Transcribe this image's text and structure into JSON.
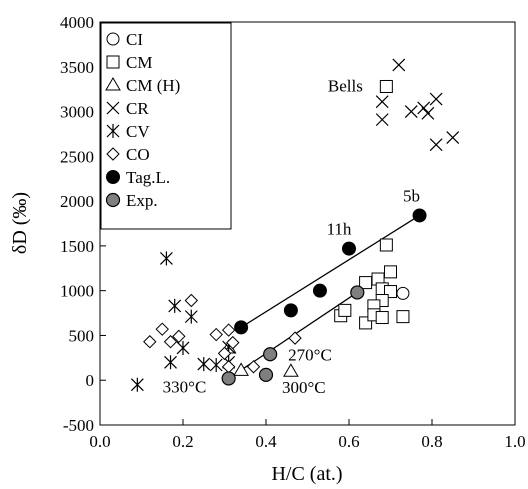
{
  "chart_data": {
    "type": "scatter",
    "xlabel": "H/C (at.)",
    "ylabel": "δD (‰)",
    "xlim": [
      0,
      1
    ],
    "ylim": [
      -500,
      4000
    ],
    "xticks": [
      0,
      0.2,
      0.4,
      0.6,
      0.8,
      1
    ],
    "xtick_labels": [
      "0.0",
      "0.2",
      "0.4",
      "0.6",
      "0.8",
      "1.0"
    ],
    "yticks": [
      -500,
      0,
      500,
      1000,
      1500,
      2000,
      2500,
      3000,
      3500,
      4000
    ],
    "ytick_labels": [
      "-500",
      "0",
      "500",
      "1000",
      "1500",
      "2000",
      "2500",
      "3000",
      "3500",
      "4000"
    ],
    "grid": false,
    "legend_position": "top-left",
    "series": [
      {
        "name": "CI",
        "marker": "circle-open",
        "points": [
          [
            0.73,
            970
          ]
        ]
      },
      {
        "name": "CM",
        "marker": "square-open",
        "points": [
          [
            0.69,
            3280
          ],
          [
            0.69,
            1510
          ],
          [
            0.7,
            1210
          ],
          [
            0.67,
            1130
          ],
          [
            0.64,
            1090
          ],
          [
            0.68,
            1020
          ],
          [
            0.7,
            990
          ],
          [
            0.68,
            890
          ],
          [
            0.66,
            830
          ],
          [
            0.58,
            720
          ],
          [
            0.59,
            780
          ],
          [
            0.64,
            640
          ],
          [
            0.66,
            730
          ],
          [
            0.68,
            700
          ],
          [
            0.73,
            710
          ]
        ]
      },
      {
        "name": "CM (H)",
        "marker": "triangle-open",
        "points": [
          [
            0.31,
            360
          ],
          [
            0.34,
            110
          ],
          [
            0.46,
            100
          ]
        ]
      },
      {
        "name": "CR",
        "marker": "x",
        "points": [
          [
            0.72,
            3520
          ],
          [
            0.68,
            3110
          ],
          [
            0.68,
            2910
          ],
          [
            0.75,
            3000
          ],
          [
            0.78,
            3040
          ],
          [
            0.79,
            2980
          ],
          [
            0.81,
            3140
          ],
          [
            0.81,
            2630
          ],
          [
            0.85,
            2710
          ]
        ]
      },
      {
        "name": "CV",
        "marker": "asterisk",
        "points": [
          [
            0.16,
            1360
          ],
          [
            0.18,
            830
          ],
          [
            0.22,
            710
          ],
          [
            0.2,
            360
          ],
          [
            0.17,
            200
          ],
          [
            0.09,
            -50
          ],
          [
            0.25,
            180
          ],
          [
            0.28,
            170
          ],
          [
            0.31,
            200
          ],
          [
            0.31,
            370
          ]
        ]
      },
      {
        "name": "CO",
        "marker": "diamond-open",
        "points": [
          [
            0.22,
            890
          ],
          [
            0.15,
            570
          ],
          [
            0.19,
            490
          ],
          [
            0.17,
            430
          ],
          [
            0.12,
            430
          ],
          [
            0.28,
            510
          ],
          [
            0.31,
            560
          ],
          [
            0.32,
            420
          ],
          [
            0.3,
            300
          ],
          [
            0.31,
            150
          ],
          [
            0.47,
            470
          ],
          [
            0.37,
            150
          ]
        ]
      },
      {
        "name": "Tag.L.",
        "marker": "circle-black",
        "points": [
          [
            0.34,
            590
          ],
          [
            0.46,
            780
          ],
          [
            0.53,
            1000
          ],
          [
            0.6,
            1470
          ],
          [
            0.77,
            1840
          ]
        ]
      },
      {
        "name": "Exp.",
        "marker": "circle-gray",
        "points": [
          [
            0.31,
            20
          ],
          [
            0.4,
            60
          ],
          [
            0.41,
            290
          ],
          [
            0.62,
            980
          ]
        ]
      }
    ],
    "trend_lines": [
      {
        "from": [
          0.34,
          590
        ],
        "to": [
          0.77,
          1840
        ]
      },
      {
        "from": [
          0.31,
          20
        ],
        "to": [
          0.62,
          980
        ]
      }
    ],
    "annotations": [
      {
        "text": "Bells",
        "x": 0.66,
        "y": 3280
      },
      {
        "text": "5b",
        "x": 0.77,
        "y": 1840
      },
      {
        "text": "11h",
        "x": 0.6,
        "y": 1470
      },
      {
        "text": "270°C",
        "x": 0.41,
        "y": 290
      },
      {
        "text": "330°C",
        "x": 0.31,
        "y": 20
      },
      {
        "text": "300°C",
        "x": 0.4,
        "y": 60
      }
    ]
  }
}
